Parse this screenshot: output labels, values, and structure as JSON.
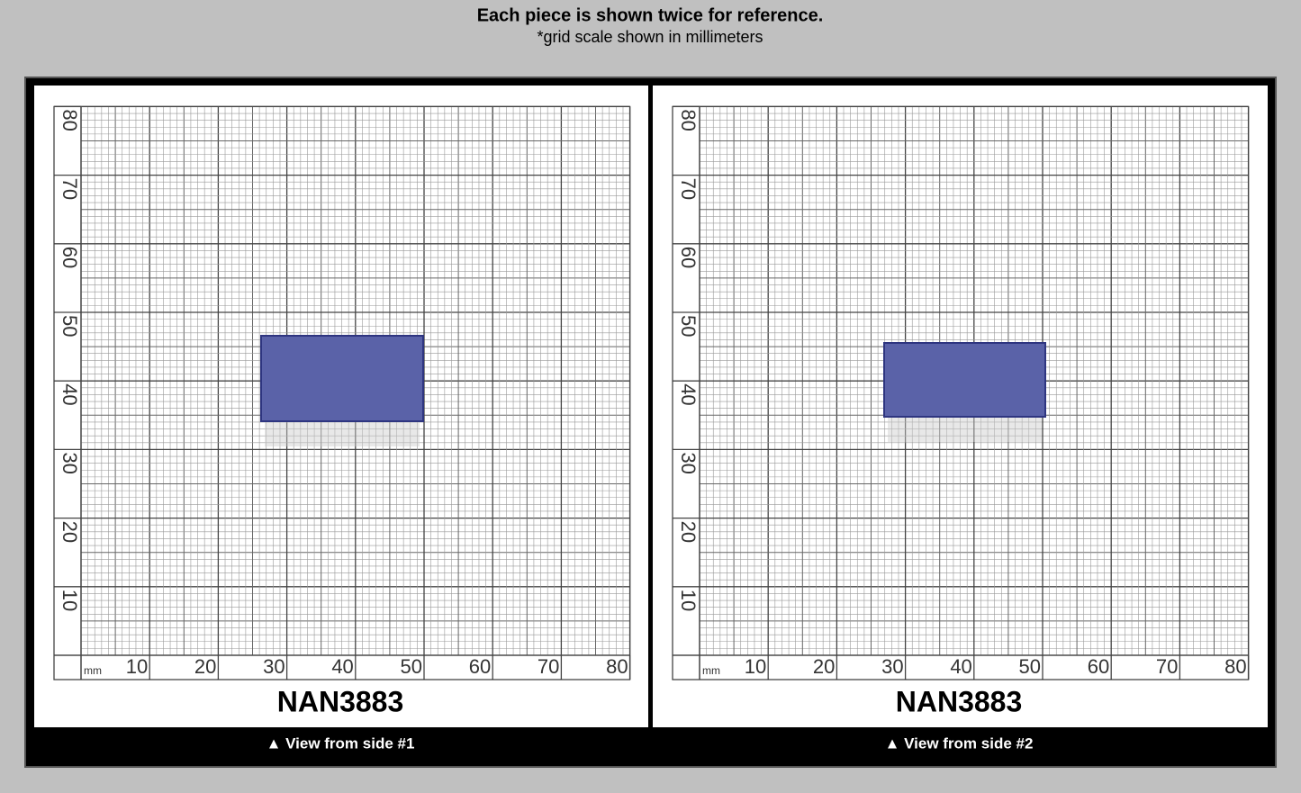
{
  "header": {
    "title": "Each piece is shown twice for reference.",
    "subtitle": "*grid scale shown in millimeters"
  },
  "panels": [
    {
      "x_labels": [
        "10",
        "20",
        "30",
        "40",
        "50",
        "60",
        "70",
        "80"
      ],
      "y_labels": [
        "10",
        "20",
        "30",
        "40",
        "50",
        "60",
        "70",
        "80"
      ],
      "unit": "mm",
      "code": "NAN3883",
      "caption": "▲ View from side #1"
    },
    {
      "x_labels": [
        "10",
        "20",
        "30",
        "40",
        "50",
        "60",
        "70",
        "80"
      ],
      "y_labels": [
        "10",
        "20",
        "30",
        "40",
        "50",
        "60",
        "70",
        "80"
      ],
      "unit": "mm",
      "code": "NAN3883",
      "caption": "▲ View from side #2"
    }
  ]
}
